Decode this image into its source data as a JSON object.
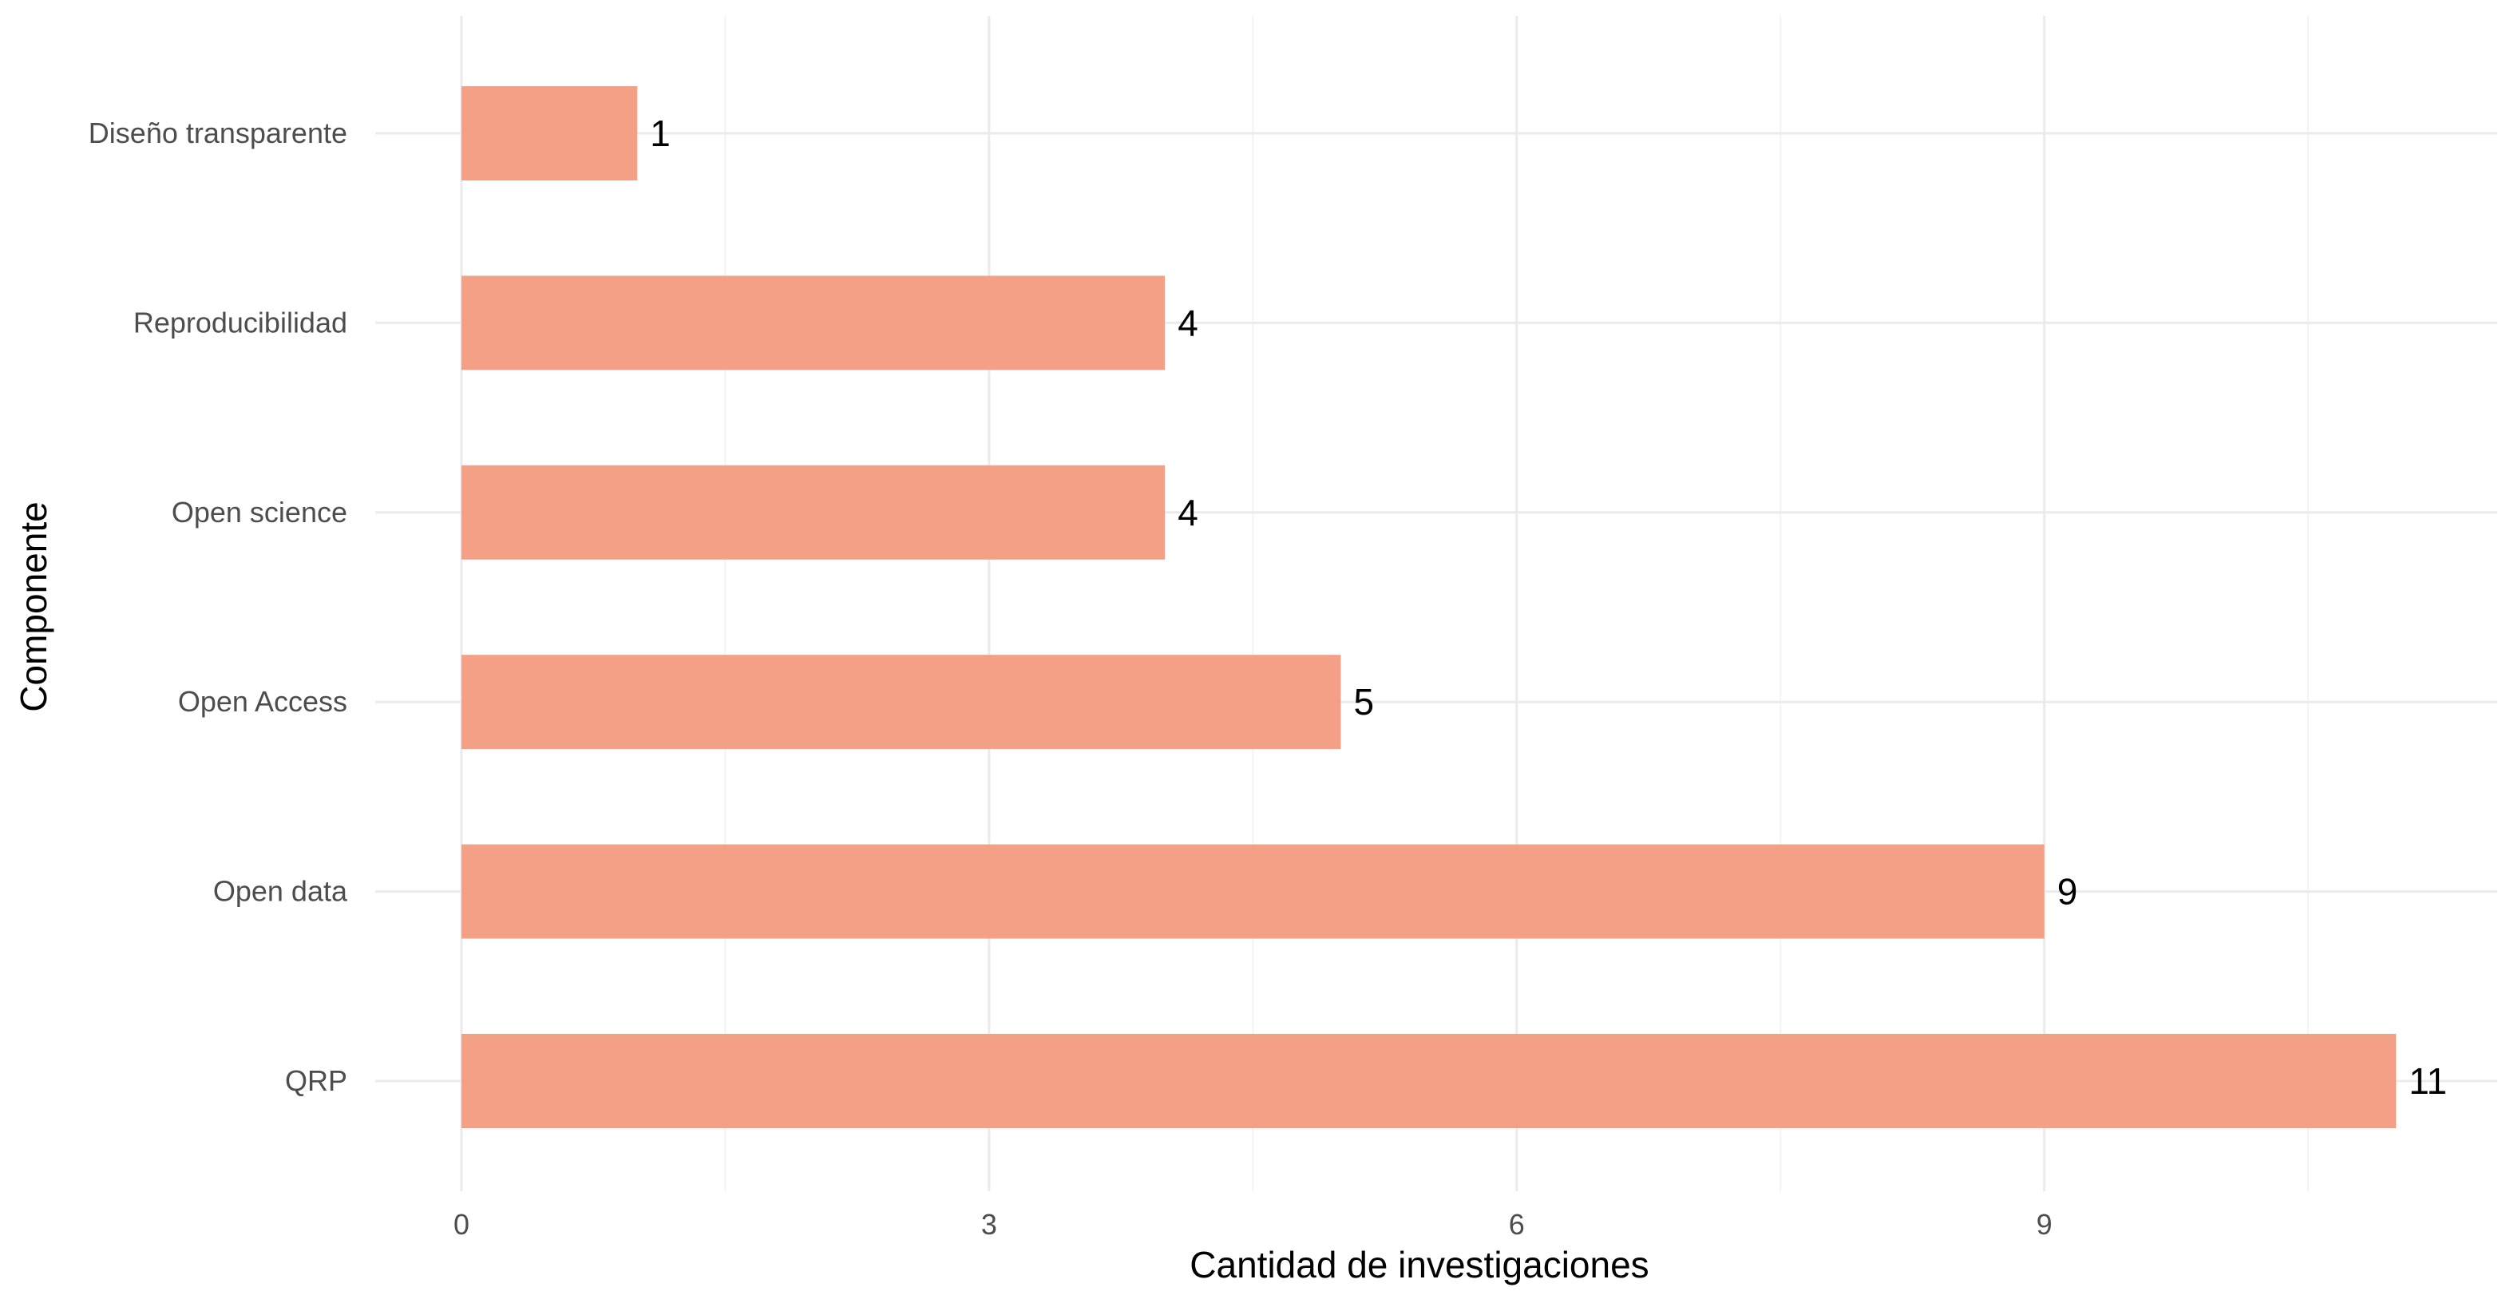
{
  "chart_data": {
    "type": "bar",
    "orientation": "horizontal",
    "categories": [
      "Diseño transparente",
      "Reproducibilidad",
      "Open science",
      "Open Access",
      "Open data",
      "QRP"
    ],
    "values": [
      1,
      4,
      4,
      5,
      9,
      11
    ],
    "data_labels": [
      "1",
      "4",
      "4",
      "5",
      "9",
      "11"
    ],
    "xlabel": "Cantidad de investigaciones",
    "ylabel": "Componente",
    "xlim": [
      0,
      11.55
    ],
    "xticks": [
      0,
      3,
      6,
      9
    ],
    "xtick_labels": [
      "0",
      "3",
      "6",
      "9"
    ],
    "minor_xticks": [
      1.5,
      4.5,
      7.5,
      10.5
    ],
    "grid": true,
    "legend": "none",
    "colors": {
      "bar": "#f4a087",
      "grid_major": "#ebebeb",
      "grid_minor": "#f3f3f3",
      "tick_text": "#4d4d4d"
    }
  }
}
